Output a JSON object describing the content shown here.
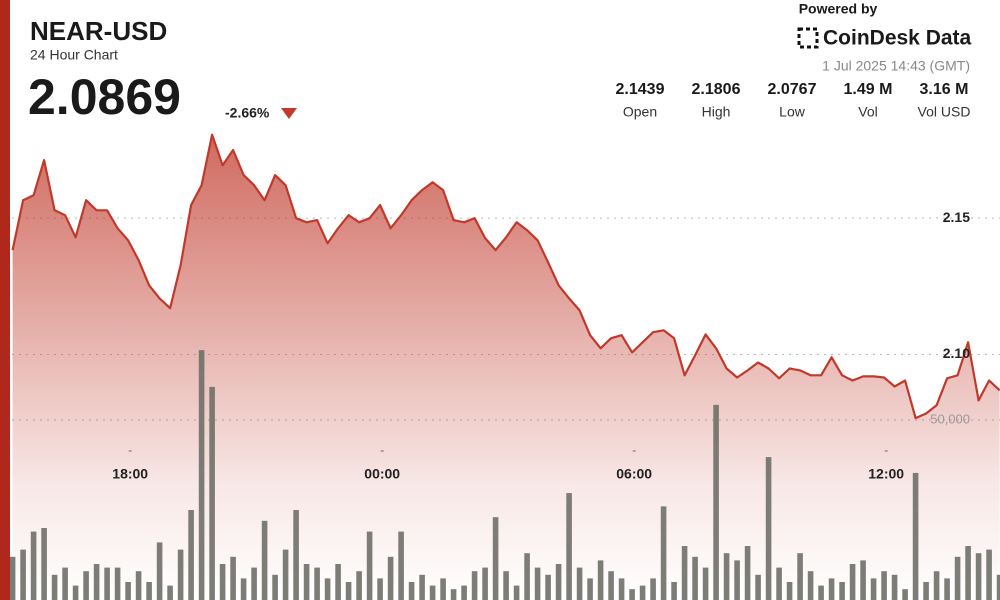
{
  "chart_data": {
    "type": "area",
    "title": "NEAR-USD",
    "subtitle": "24 Hour Chart",
    "price": 2.0869,
    "change": {
      "value": -2.66,
      "label": "-2.66%"
    },
    "stats": [
      {
        "name": "Open",
        "value": 2.1439
      },
      {
        "name": "High",
        "value": 2.1806
      },
      {
        "name": "Low",
        "value": 2.0767
      },
      {
        "name": "Vol",
        "value": 1490000,
        "value_label": "1.49 M"
      },
      {
        "name": "Vol USD",
        "value": 3160000,
        "value_label": "3.16 M"
      }
    ],
    "powered_by": "Powered by",
    "brand": "CoinDesk Data",
    "timestamp": "1 Jul 2025 14:43 (GMT)",
    "xlim": [
      14.9,
      38.71
    ],
    "xticks": [
      {
        "value": 18,
        "label": "18:00"
      },
      {
        "value": 24,
        "label": "00:00"
      },
      {
        "value": 30,
        "label": "06:00"
      },
      {
        "value": 36,
        "label": "12:00"
      }
    ],
    "ylim": [
      2.01,
      2.23
    ],
    "yticks": [
      {
        "value": 2.1,
        "label": "2.10"
      },
      2.15
    ],
    "y2lim": [
      0,
      100000
    ],
    "y2ticks": [
      {
        "value": 50000,
        "label": "50,000"
      }
    ],
    "grid": true,
    "x": [
      15.2,
      15.45,
      15.7,
      15.95,
      16.2,
      16.45,
      16.7,
      16.95,
      17.2,
      17.45,
      17.7,
      17.95,
      18.2,
      18.45,
      18.7,
      18.95,
      19.2,
      19.45,
      19.7,
      19.95,
      20.2,
      20.45,
      20.7,
      20.95,
      21.2,
      21.45,
      21.7,
      21.95,
      22.2,
      22.45,
      22.7,
      22.95,
      23.2,
      23.45,
      23.7,
      23.95,
      24.2,
      24.45,
      24.7,
      24.95,
      25.2,
      25.45,
      25.7,
      25.95,
      26.2,
      26.45,
      26.7,
      26.95,
      27.2,
      27.45,
      27.7,
      27.95,
      28.2,
      28.45,
      28.7,
      28.95,
      29.2,
      29.45,
      29.7,
      29.95,
      30.2,
      30.45,
      30.7,
      30.95,
      31.2,
      31.45,
      31.7,
      31.95,
      32.2,
      32.45,
      32.7,
      32.95,
      33.2,
      33.45,
      33.7,
      33.95,
      34.2,
      34.45,
      34.7,
      34.95,
      35.2,
      35.45,
      35.7,
      35.95,
      36.2,
      36.45,
      36.7,
      36.95,
      37.2,
      37.45,
      37.7,
      37.95,
      38.2,
      38.45,
      38.7
    ],
    "series": [
      {
        "type": "area",
        "color": "#c0392b",
        "values": [
          2.1383,
          2.1566,
          2.1584,
          2.1713,
          2.1529,
          2.1511,
          2.143,
          2.1566,
          2.1529,
          2.1529,
          2.1463,
          2.1419,
          2.1346,
          2.1254,
          2.1206,
          2.117,
          2.1327,
          2.1548,
          2.1621,
          2.1806,
          2.1694,
          2.175,
          2.1658,
          2.1621,
          2.1566,
          2.1658,
          2.1621,
          2.15,
          2.1485,
          2.1493,
          2.1408,
          2.1463,
          2.1511,
          2.1485,
          2.15,
          2.1548,
          2.1463,
          2.1511,
          2.1566,
          2.1603,
          2.1632,
          2.1603,
          2.1493,
          2.1485,
          2.15,
          2.1427,
          2.1383,
          2.143,
          2.1485,
          2.1456,
          2.1419,
          2.1338,
          2.1254,
          2.1206,
          2.1162,
          2.1071,
          2.1023,
          2.106,
          2.1071,
          2.1008,
          2.1045,
          2.1082,
          2.1089,
          2.106,
          2.0924,
          2.0997,
          2.1074,
          2.1023,
          2.0949,
          2.0916,
          2.0942,
          2.0971,
          2.0949,
          2.0913,
          2.0949,
          2.0942,
          2.0924,
          2.0924,
          2.099,
          2.0924,
          2.0905,
          2.092,
          2.092,
          2.0916,
          2.0883,
          2.0905,
          2.0767,
          2.0784,
          2.0814,
          2.0913,
          2.0924,
          2.1045,
          2.0832,
          2.0905,
          2.0869
        ]
      },
      {
        "type": "bar",
        "axis": "y2",
        "color": "#6f6f68",
        "values": [
          12000,
          14000,
          19000,
          20000,
          7000,
          9000,
          4000,
          8000,
          10000,
          9000,
          9000,
          5000,
          8000,
          5000,
          16000,
          4000,
          14000,
          25000,
          69400,
          59200,
          10000,
          12000,
          6000,
          9000,
          22000,
          7000,
          14000,
          25000,
          10000,
          9000,
          6000,
          10000,
          5000,
          8000,
          19000,
          6000,
          12000,
          19000,
          5000,
          7000,
          4000,
          6000,
          3000,
          4000,
          8000,
          9000,
          23000,
          8000,
          4000,
          13000,
          9000,
          7000,
          10000,
          29700,
          9000,
          6000,
          11000,
          8000,
          6000,
          3000,
          4000,
          6000,
          26000,
          5000,
          15000,
          12000,
          9000,
          54200,
          13000,
          11000,
          15000,
          7000,
          39700,
          9000,
          5000,
          13000,
          8000,
          4000,
          6000,
          5000,
          10000,
          11000,
          6000,
          8000,
          7000,
          3000,
          35300,
          5000,
          8000,
          6000,
          12000,
          15000,
          13000,
          14000,
          7000
        ]
      }
    ]
  }
}
